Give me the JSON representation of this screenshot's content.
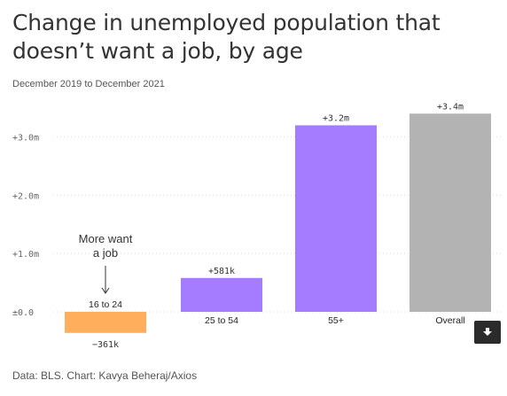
{
  "title": "Change in unemployed population that doesn’t want a job, by age",
  "subtitle": "December 2019 to December 2021",
  "source": "Data: BLS. Chart: Kavya Beheraj/Axios",
  "download_icon": "download-icon",
  "annotation": {
    "line1": "More want",
    "line2": "a job",
    "arrow": "↓"
  },
  "colors": {
    "negative_bar": "#FFAE5C",
    "age_bars": "#A57BFF",
    "overall_bar": "#B3B3B3",
    "grid": "#DDDDDD",
    "axis_text": "#666666"
  },
  "chart_data": {
    "type": "bar",
    "title": "Change in unemployed population that doesn’t want a job, by age",
    "subtitle": "December 2019 to December 2021",
    "categories": [
      "16 to 24",
      "25 to 54",
      "55+",
      "Overall"
    ],
    "values": [
      -0.361,
      0.581,
      3.2,
      3.4
    ],
    "value_labels": [
      "−361k",
      "+581k",
      "+3.2m",
      "+3.4m"
    ],
    "yticks": [
      0,
      1,
      2,
      3
    ],
    "ytick_labels": [
      "±0.0",
      "+1.0m",
      "+2.0m",
      "+3.0m"
    ],
    "ylim": [
      -0.55,
      3.55
    ],
    "grid": true,
    "xlabel": "",
    "ylabel": ""
  }
}
